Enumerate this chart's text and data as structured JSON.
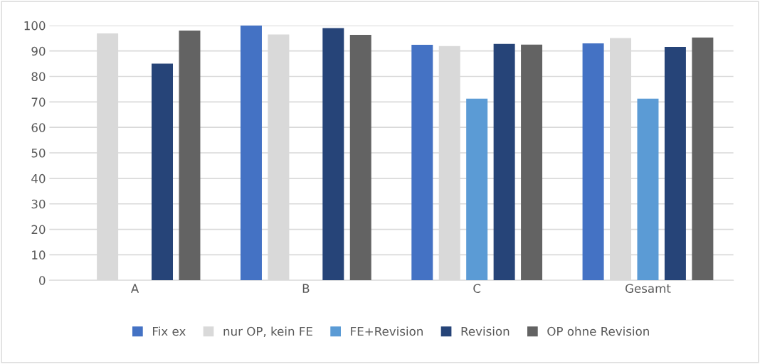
{
  "chart_data": {
    "type": "bar",
    "categories": [
      "A",
      "B",
      "C",
      "Gesamt"
    ],
    "series": [
      {
        "name": "Fix ex",
        "color": "#4472c4",
        "values": [
          null,
          100,
          92.4,
          93.0
        ]
      },
      {
        "name": "nur OP, kein FE",
        "color": "#d9d9d9",
        "values": [
          96.9,
          96.5,
          91.9,
          95.1
        ]
      },
      {
        "name": "FE+Revision",
        "color": "#5b9bd5",
        "values": [
          null,
          null,
          71.3,
          71.3
        ]
      },
      {
        "name": "Revision",
        "color": "#264478",
        "values": [
          85.0,
          99.0,
          92.8,
          91.6
        ]
      },
      {
        "name": "OP ohne Revision",
        "color": "#636363",
        "values": [
          98.0,
          96.3,
          92.5,
          95.3
        ]
      }
    ],
    "ylim": [
      0,
      100
    ],
    "yticks": [
      0,
      10,
      20,
      30,
      40,
      50,
      60,
      70,
      80,
      90,
      100
    ],
    "grid": "y",
    "legend": "bottom"
  }
}
